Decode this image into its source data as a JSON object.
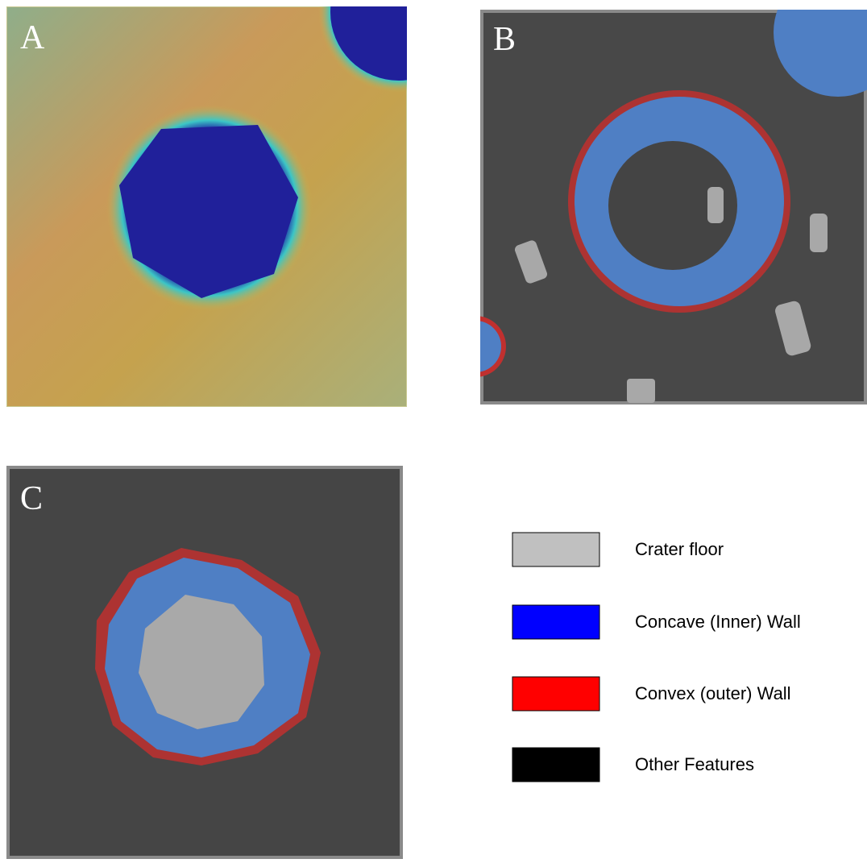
{
  "panels": [
    {
      "label": "A"
    },
    {
      "label": "B"
    },
    {
      "label": "C"
    }
  ],
  "legend": [
    {
      "label": "Crater floor",
      "color": "#c0c0c0"
    },
    {
      "label": "Concave (Inner) Wall",
      "color": "#0000ff"
    },
    {
      "label": "Convex (outer) Wall",
      "color": "#ff0000"
    },
    {
      "label": "Other Features",
      "color": "#000000"
    }
  ]
}
